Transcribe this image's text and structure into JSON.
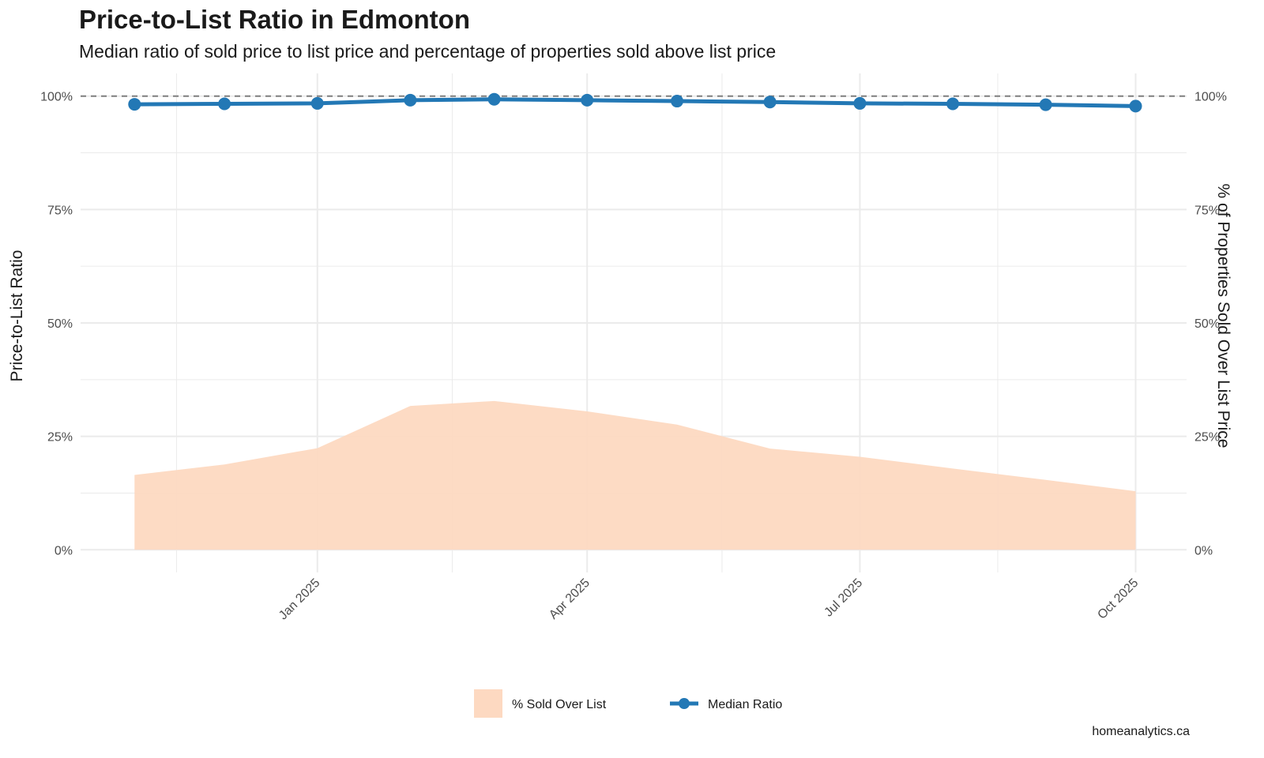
{
  "header": {
    "title": "Price-to-List Ratio in Edmonton",
    "subtitle": "Median ratio of sold price to list price and percentage of properties sold above list price"
  },
  "caption": "homeanalytics.ca",
  "colors": {
    "ratio_line": "#2378b5",
    "area_fill": "#fdd9c1",
    "reference_line": "#808080",
    "grid": "#ebebeb"
  },
  "chart_data": {
    "type": "line",
    "title": "Price-to-List Ratio in Edmonton",
    "subtitle": "Median ratio of sold price to list price and percentage of properties sold above list price",
    "ylabel": "Price-to-List Ratio",
    "y2label": "% of Properties Sold Over List Price",
    "xlabel": "",
    "x": [
      "2024-11-01",
      "2024-12-01",
      "2025-01-01",
      "2025-02-01",
      "2025-03-01",
      "2025-04-01",
      "2025-05-01",
      "2025-06-01",
      "2025-07-01",
      "2025-08-01",
      "2025-09-01",
      "2025-10-01"
    ],
    "x_tick_labels": [
      {
        "label": "Jan 2025",
        "date": "2025-01-01"
      },
      {
        "label": "Apr 2025",
        "date": "2025-04-01"
      },
      {
        "label": "Jul 2025",
        "date": "2025-07-01"
      },
      {
        "label": "Oct 2025",
        "date": "2025-10-01"
      }
    ],
    "x_minor_grid": [
      "2024-11-15",
      "2025-02-15",
      "2025-05-16",
      "2025-08-16"
    ],
    "xlim": [
      "2024-10-14",
      "2025-10-18"
    ],
    "ylim": [
      -0.05,
      1.05
    ],
    "y_ticks": [
      0,
      0.25,
      0.5,
      0.75,
      1.0
    ],
    "y_tick_labels": [
      "0%",
      "25%",
      "50%",
      "75%",
      "100%"
    ],
    "y2_tick_labels": [
      "0%",
      "25%",
      "50%",
      "75%",
      "100%"
    ],
    "reference_line": 1.0,
    "grid": true,
    "legend_position": "bottom",
    "series": [
      {
        "name": "% Sold Over List",
        "type": "area",
        "values": [
          0.165,
          0.188,
          0.224,
          0.317,
          0.328,
          0.305,
          0.276,
          0.223,
          0.205,
          0.179,
          0.154,
          0.129
        ]
      },
      {
        "name": "Median Ratio",
        "type": "line",
        "values": [
          0.982,
          0.983,
          0.984,
          0.991,
          0.993,
          0.991,
          0.989,
          0.987,
          0.984,
          0.983,
          0.981,
          0.978
        ]
      }
    ]
  }
}
